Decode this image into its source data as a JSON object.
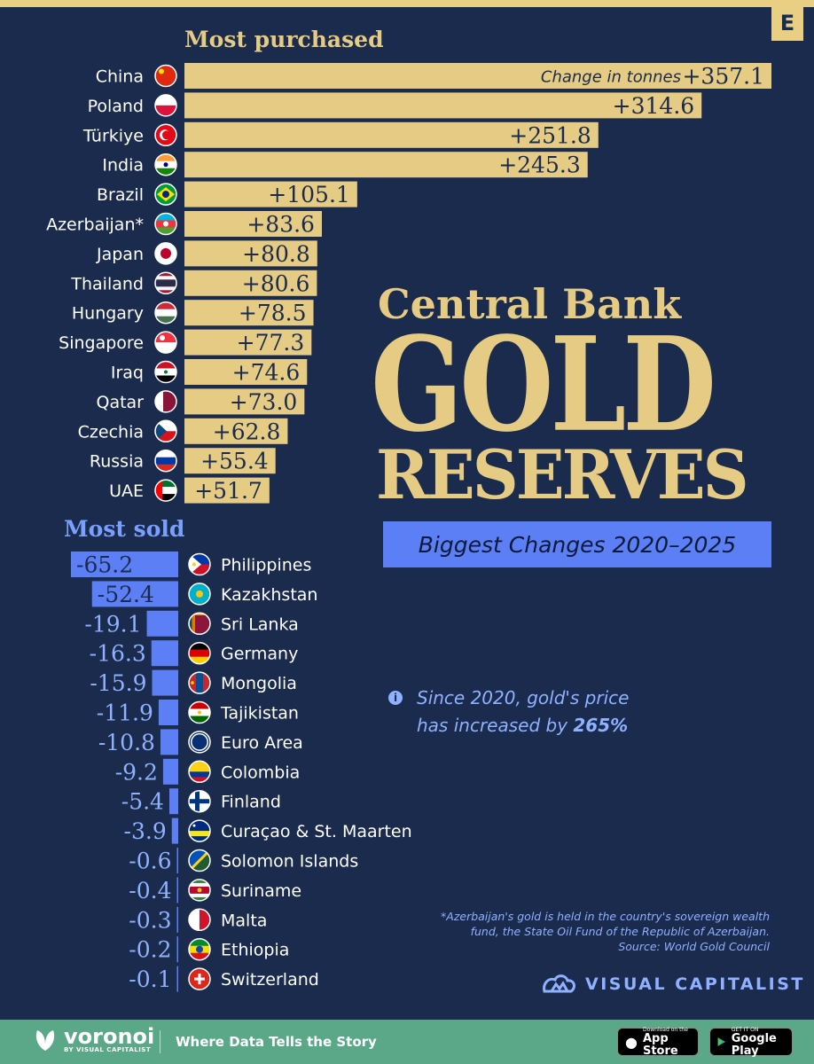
{
  "badge": "E",
  "sections": {
    "purchased": "Most purchased",
    "sold": "Most sold"
  },
  "title": {
    "line1": "Central Bank",
    "line2": "GOLD",
    "line3": "RESERVES",
    "subtitle": "Biggest Changes 2020–2025"
  },
  "note": {
    "line1": "Since 2020, gold's price",
    "line2_prefix": "has increased by ",
    "line2_bold": "265%"
  },
  "footnote": {
    "line1": "*Azerbaijan's gold is held in the country's sovereign wealth",
    "line2": "fund, the State Oil Fund of the Republic of Azerbaijan.",
    "line3": "Source: World Gold Council"
  },
  "brand": {
    "visual_capitalist": "VISUAL CAPITALIST",
    "voronoi": "voronoi",
    "voronoi_by": "BY VISUAL CAPITALIST",
    "tagline": "Where Data Tells the Story",
    "appstore_small": "Download on the",
    "appstore_big": "App Store",
    "googleplay_small": "GET IT ON",
    "googleplay_big": "Google Play"
  },
  "colors": {
    "background": "#1a2b4d",
    "gold": "#e5cb84",
    "blue": "#5c7ff6",
    "footer_green": "#5aa887"
  },
  "chart_data": [
    {
      "type": "bar",
      "title": "Most purchased",
      "annotation": "Change in tonnes",
      "categories": [
        "China",
        "Poland",
        "Türkiye",
        "India",
        "Brazil",
        "Azerbaijan*",
        "Japan",
        "Thailand",
        "Hungary",
        "Singapore",
        "Iraq",
        "Qatar",
        "Czechia",
        "Russia",
        "UAE"
      ],
      "values": [
        357.1,
        314.6,
        251.8,
        245.3,
        105.1,
        83.6,
        80.8,
        80.6,
        78.5,
        77.3,
        74.6,
        73.0,
        62.8,
        55.4,
        51.7
      ],
      "labels": [
        "+357.1",
        "+314.6",
        "+251.8",
        "+245.3",
        "+105.1",
        "+83.6",
        "+80.8",
        "+80.6",
        "+78.5",
        "+77.3",
        "+74.6",
        "+73.0",
        "+62.8",
        "+55.4",
        "+51.7"
      ],
      "flags": [
        "china-flag-icon",
        "poland-flag-icon",
        "turkiye-flag-icon",
        "india-flag-icon",
        "brazil-flag-icon",
        "azerbaijan-flag-icon",
        "japan-flag-icon",
        "thailand-flag-icon",
        "hungary-flag-icon",
        "singapore-flag-icon",
        "iraq-flag-icon",
        "qatar-flag-icon",
        "czechia-flag-icon",
        "russia-flag-icon",
        "uae-flag-icon"
      ],
      "color": "#e5cb84"
    },
    {
      "type": "bar",
      "title": "Most sold",
      "categories": [
        "Philippines",
        "Kazakhstan",
        "Sri Lanka",
        "Germany",
        "Mongolia",
        "Tajikistan",
        "Euro Area",
        "Colombia",
        "Finland",
        "Curaçao & St. Maarten",
        "Solomon Islands",
        "Suriname",
        "Malta",
        "Ethiopia",
        "Switzerland"
      ],
      "values": [
        -65.2,
        -52.4,
        -19.1,
        -16.3,
        -15.9,
        -11.9,
        -10.8,
        -9.2,
        -5.4,
        -3.9,
        -0.6,
        -0.4,
        -0.3,
        -0.2,
        -0.1
      ],
      "labels": [
        "-65.2",
        "-52.4",
        "-19.1",
        "-16.3",
        "-15.9",
        "-11.9",
        "-10.8",
        "-9.2",
        "-5.4",
        "-3.9",
        "-0.6",
        "-0.4",
        "-0.3",
        "-0.2",
        "-0.1"
      ],
      "flags": [
        "philippines-flag-icon",
        "kazakhstan-flag-icon",
        "sri-lanka-flag-icon",
        "germany-flag-icon",
        "mongolia-flag-icon",
        "tajikistan-flag-icon",
        "euro-area-flag-icon",
        "colombia-flag-icon",
        "finland-flag-icon",
        "curacao-st-maarten-flag-icon",
        "solomon-islands-flag-icon",
        "suriname-flag-icon",
        "malta-flag-icon",
        "ethiopia-flag-icon",
        "switzerland-flag-icon"
      ],
      "color": "#5c7ff6"
    }
  ]
}
